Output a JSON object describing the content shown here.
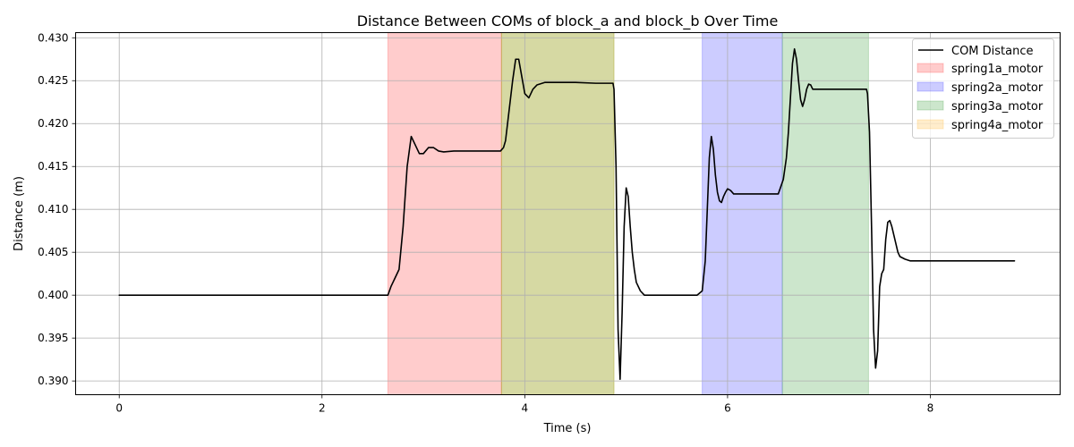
{
  "chart_data": {
    "type": "line",
    "title": "Distance Between COMs of block_a and block_b Over Time",
    "xlabel": "Time (s)",
    "ylabel": "Distance (m)",
    "xlim": [
      -0.43,
      9.28
    ],
    "ylim": [
      0.3884,
      0.4306
    ],
    "x_ticks": [
      0,
      2,
      4,
      6,
      8
    ],
    "y_ticks": [
      0.39,
      0.395,
      0.4,
      0.405,
      0.41,
      0.415,
      0.42,
      0.425,
      0.43
    ],
    "x_tick_labels": [
      "0",
      "2",
      "4",
      "6",
      "8"
    ],
    "y_tick_labels": [
      "0.390",
      "0.395",
      "0.400",
      "0.405",
      "0.410",
      "0.415",
      "0.420",
      "0.425",
      "0.430"
    ],
    "grid": true,
    "legend_position": "top-right",
    "series": [
      {
        "name": "COM Distance",
        "color": "#000000",
        "x": [
          0,
          0.5,
          1.0,
          1.5,
          2.0,
          2.5,
          2.65,
          2.68,
          2.72,
          2.76,
          2.8,
          2.84,
          2.88,
          2.92,
          2.96,
          3.0,
          3.05,
          3.1,
          3.15,
          3.2,
          3.3,
          3.4,
          3.5,
          3.6,
          3.7,
          3.76,
          3.79,
          3.81,
          3.84,
          3.88,
          3.91,
          3.94,
          3.97,
          4.0,
          4.04,
          4.08,
          4.12,
          4.2,
          4.3,
          4.5,
          4.7,
          4.87,
          4.88,
          4.9,
          4.92,
          4.94,
          4.96,
          4.98,
          5.0,
          5.02,
          5.04,
          5.06,
          5.08,
          5.1,
          5.14,
          5.18,
          5.22,
          5.26,
          5.3,
          5.4,
          5.5,
          5.6,
          5.7,
          5.75,
          5.78,
          5.8,
          5.82,
          5.84,
          5.86,
          5.88,
          5.9,
          5.92,
          5.94,
          5.96,
          5.98,
          6.0,
          6.03,
          6.06,
          6.09,
          6.12,
          6.15,
          6.2,
          6.3,
          6.4,
          6.5,
          6.55,
          6.58,
          6.6,
          6.62,
          6.64,
          6.66,
          6.68,
          6.7,
          6.72,
          6.74,
          6.76,
          6.78,
          6.8,
          6.82,
          6.84,
          6.86,
          6.9,
          7.0,
          7.1,
          7.2,
          7.3,
          7.37,
          7.38,
          7.4,
          7.42,
          7.44,
          7.46,
          7.48,
          7.5,
          7.52,
          7.54,
          7.56,
          7.58,
          7.6,
          7.62,
          7.64,
          7.66,
          7.68,
          7.7,
          7.75,
          7.8,
          7.9,
          8.0,
          8.2,
          8.5,
          8.83
        ],
        "y": [
          0.4,
          0.4,
          0.4,
          0.4,
          0.4,
          0.4,
          0.4,
          0.401,
          0.402,
          0.403,
          0.408,
          0.415,
          0.4185,
          0.4175,
          0.4165,
          0.4165,
          0.4172,
          0.4172,
          0.4168,
          0.4167,
          0.4168,
          0.4168,
          0.4168,
          0.4168,
          0.4168,
          0.4168,
          0.4172,
          0.418,
          0.421,
          0.425,
          0.4275,
          0.4275,
          0.4255,
          0.4235,
          0.423,
          0.424,
          0.4245,
          0.4248,
          0.4248,
          0.4248,
          0.4247,
          0.4247,
          0.424,
          0.415,
          0.396,
          0.3902,
          0.398,
          0.408,
          0.4125,
          0.4115,
          0.408,
          0.405,
          0.403,
          0.4015,
          0.4005,
          0.4,
          0.4,
          0.4,
          0.4,
          0.4,
          0.4,
          0.4,
          0.4,
          0.4005,
          0.404,
          0.41,
          0.416,
          0.4185,
          0.417,
          0.414,
          0.412,
          0.411,
          0.4108,
          0.4115,
          0.412,
          0.4124,
          0.4122,
          0.4118,
          0.4118,
          0.4118,
          0.4118,
          0.4118,
          0.4118,
          0.4118,
          0.4118,
          0.4135,
          0.416,
          0.419,
          0.423,
          0.427,
          0.4287,
          0.4275,
          0.425,
          0.4228,
          0.422,
          0.4228,
          0.424,
          0.4246,
          0.4245,
          0.424,
          0.424,
          0.424,
          0.424,
          0.424,
          0.424,
          0.424,
          0.424,
          0.4235,
          0.419,
          0.408,
          0.396,
          0.3915,
          0.3935,
          0.401,
          0.4025,
          0.403,
          0.4065,
          0.4085,
          0.4087,
          0.408,
          0.407,
          0.406,
          0.405,
          0.4045,
          0.4042,
          0.404,
          0.404,
          0.404,
          0.404,
          0.404,
          0.404
        ]
      }
    ],
    "spans": [
      {
        "name": "spring1a_motor",
        "color": "#ff0000",
        "alpha": 0.2,
        "intervals": [
          [
            2.65,
            3.77
          ]
        ]
      },
      {
        "name": "spring2a_motor",
        "color": "#0000ff",
        "alpha": 0.2,
        "intervals": [
          [
            5.75,
            6.54
          ]
        ]
      },
      {
        "name": "spring3a_motor",
        "color": "#008000",
        "alpha": 0.2,
        "intervals": [
          [
            3.77,
            4.88
          ],
          [
            6.54,
            7.39
          ]
        ]
      },
      {
        "name": "spring4a_motor",
        "color": "#ffa500",
        "alpha": 0.2,
        "intervals": [
          [
            3.77,
            4.88
          ]
        ]
      }
    ],
    "legend": [
      "COM Distance",
      "spring1a_motor",
      "spring2a_motor",
      "spring3a_motor",
      "spring4a_motor"
    ]
  }
}
